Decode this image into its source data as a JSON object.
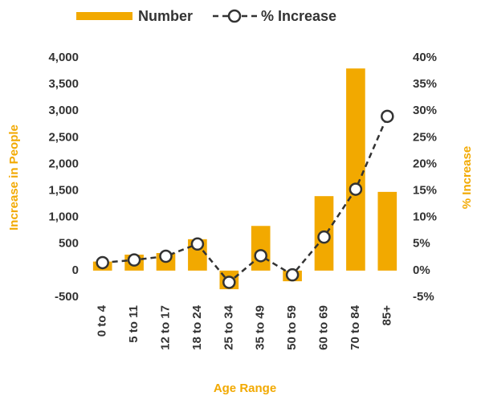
{
  "chart_data": {
    "type": "bar",
    "xlabel": "Age Range",
    "ylabel": "Increase in People",
    "y2label": "% Increase",
    "legend": "top",
    "categories": [
      "0 to 4",
      "5 to 11",
      "12 to 17",
      "18 to 24",
      "25 to 34",
      "35 to 49",
      "50 to 59",
      "60 to 69",
      "70 to 84",
      "85+"
    ],
    "series": [
      {
        "name": "Number",
        "type": "bar",
        "color": "#f2a900",
        "values": [
          170,
          300,
          330,
          590,
          -350,
          840,
          -200,
          1400,
          3800,
          1480
        ]
      },
      {
        "name": "% Increase",
        "type": "line",
        "axis": "y2",
        "color": "#333333",
        "values": [
          1.5,
          2.0,
          2.7,
          5.0,
          -2.2,
          2.8,
          -0.8,
          6.3,
          15.3,
          29.0
        ]
      }
    ],
    "ylim": [
      -500,
      4000
    ],
    "yticks": [
      -500,
      0,
      500,
      {
        "value": 1000,
        "label": "1,000"
      },
      {
        "value": 1500,
        "label": "1,500"
      },
      {
        "value": 2000,
        "label": "2,000"
      },
      {
        "value": 2500,
        "label": "2,500"
      },
      {
        "value": 3000,
        "label": "3,000"
      },
      {
        "value": 3500,
        "label": "3,500"
      },
      {
        "value": 4000,
        "label": "4,000"
      }
    ],
    "y2lim": [
      -5,
      40
    ],
    "y2ticks": [
      {
        "value": -5,
        "label": "-5%"
      },
      {
        "value": 0,
        "label": "0%"
      },
      {
        "value": 5,
        "label": "5%"
      },
      {
        "value": 10,
        "label": "10%"
      },
      {
        "value": 15,
        "label": "15%"
      },
      {
        "value": 20,
        "label": "20%"
      },
      {
        "value": 25,
        "label": "25%"
      },
      {
        "value": 30,
        "label": "30%"
      },
      {
        "value": 35,
        "label": "35%"
      },
      {
        "value": 40,
        "label": "40%"
      }
    ],
    "grid": false
  }
}
